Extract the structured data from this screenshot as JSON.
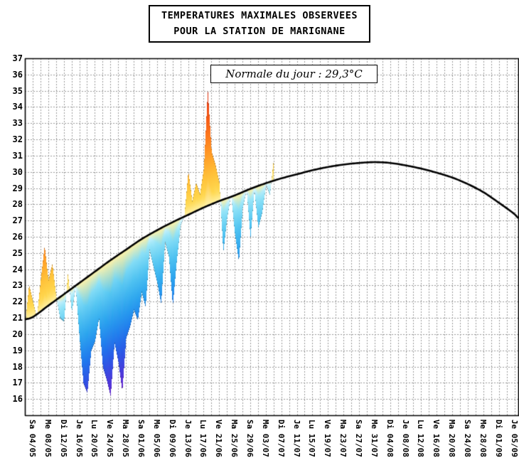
{
  "title": {
    "line1": "TEMPERATURES MAXIMALES OBSERVEES",
    "line2": "POUR LA STATION DE MARIGNANE"
  },
  "annotation": {
    "label": "Normale du jour : 29,3°C"
  },
  "chart_data": {
    "type": "area",
    "title": "TEMPERATURES MAXIMALES OBSERVEES POUR LA STATION DE MARIGNANE",
    "station": "MARIGNANE",
    "annotation": "Normale du jour : 29,3°C",
    "normale_du_jour_c": 29.3,
    "grid": {
      "horizontal_step_c": 1,
      "vertical_step_days": 2,
      "style": "dashed"
    },
    "y_axis": {
      "min": 15,
      "max": 37,
      "unit": "°C",
      "tick_labels": [
        "37",
        "36",
        "35",
        "34",
        "33",
        "32",
        "31",
        "30",
        "29",
        "28",
        "27",
        "26",
        "25",
        "24",
        "23",
        "22",
        "21",
        "20",
        "19",
        "18",
        "17",
        "16"
      ]
    },
    "x_axis": {
      "total_days": 127,
      "first_label_day_offset": 2,
      "label_step_days": 4,
      "minor_grid_step_days": 2,
      "labels": [
        "Sa 04/05",
        "Me 08/05",
        "Di 12/05",
        "Je 16/05",
        "Lu 20/05",
        "Ve 24/05",
        "Ma 28/05",
        "Sa 01/06",
        "Me 05/06",
        "Di 09/06",
        "Je 13/06",
        "Lu 17/06",
        "Ve 21/06",
        "Ma 25/06",
        "Sa 29/06",
        "Me 03/07",
        "Di 07/07",
        "Je 11/07",
        "Lu 15/07",
        "Ve 19/07",
        "Ma 23/07",
        "Sa 27/07",
        "Me 31/07",
        "Di 04/08",
        "Je 08/08",
        "Lu 12/08",
        "Ve 16/08",
        "Ma 20/08",
        "Sa 24/08",
        "Me 28/08",
        "Di 01/09",
        "Je 05/09"
      ]
    },
    "normal_curve": {
      "left_edge_value": 20.9,
      "values_at_labels": [
        21.05,
        21.75,
        22.45,
        23.15,
        23.85,
        24.55,
        25.2,
        25.85,
        26.4,
        26.9,
        27.35,
        27.8,
        28.2,
        28.55,
        28.95,
        29.3,
        29.6,
        29.85,
        30.1,
        30.3,
        30.45,
        30.55,
        30.6,
        30.55,
        30.4,
        30.2,
        29.95,
        29.65,
        29.25,
        28.75,
        28.1,
        27.4
      ],
      "right_edge_value": 27.15
    },
    "observed": {
      "start_day_offset": 0,
      "start_date": "02/05",
      "dates": [
        "02/05",
        "03/05",
        "04/05",
        "05/05",
        "06/05",
        "07/05",
        "08/05",
        "09/05",
        "10/05",
        "11/05",
        "12/05",
        "13/05",
        "14/05",
        "15/05",
        "16/05",
        "17/05",
        "18/05",
        "19/05",
        "20/05",
        "21/05",
        "22/05",
        "23/05",
        "24/05",
        "25/05",
        "26/05",
        "27/05",
        "28/05",
        "29/05",
        "30/05",
        "31/05",
        "01/06",
        "02/06",
        "03/06",
        "04/06",
        "05/06",
        "06/06",
        "07/06",
        "08/06",
        "09/06",
        "10/06",
        "11/06",
        "12/06",
        "13/06",
        "14/06",
        "15/06",
        "16/06",
        "17/06",
        "18/06",
        "19/06",
        "20/06",
        "21/06",
        "22/06",
        "23/06",
        "24/06",
        "25/06",
        "26/06",
        "27/06",
        "28/06",
        "29/06",
        "30/06",
        "01/07",
        "02/07",
        "03/07",
        "04/07",
        "05/07"
      ],
      "values": [
        20.6,
        23.0,
        22.0,
        21.0,
        23.3,
        25.4,
        23.3,
        24.3,
        22.3,
        21.0,
        20.8,
        23.7,
        21.4,
        22.9,
        19.8,
        17.0,
        16.4,
        19.0,
        19.6,
        21.0,
        18.0,
        17.2,
        16.2,
        19.5,
        18.3,
        16.5,
        19.8,
        20.5,
        21.5,
        20.9,
        22.6,
        21.7,
        25.2,
        24.2,
        23.2,
        21.9,
        25.7,
        24.8,
        21.8,
        24.5,
        26.7,
        27.3,
        30.0,
        28.2,
        29.3,
        28.6,
        30.2,
        35.0,
        31.2,
        30.4,
        29.3,
        25.1,
        27.2,
        28.6,
        26.2,
        24.5,
        27.8,
        28.9,
        26.0,
        28.9,
        26.6,
        27.5,
        29.2,
        28.6,
        30.8
      ]
    },
    "colors": {
      "background": "#ffffff",
      "grid": "#999999",
      "axis": "#000000",
      "normal_curve": "#000000",
      "observed_edge_darken": 0.72,
      "fill_scale_below": [
        [
          0,
          "#e2f7fd"
        ],
        [
          0.7,
          "#96e5f8"
        ],
        [
          2,
          "#55c7f2"
        ],
        [
          3.5,
          "#2aa4ee"
        ],
        [
          5,
          "#1e7aee"
        ],
        [
          6.5,
          "#2e4ce4"
        ],
        [
          8,
          "#5c2ad6"
        ],
        [
          9.5,
          "#8b1ec6"
        ]
      ],
      "fill_scale_above": [
        [
          0,
          "#fff2a8"
        ],
        [
          0.7,
          "#ffd84e"
        ],
        [
          2,
          "#ffbe36"
        ],
        [
          3,
          "#ffa028"
        ],
        [
          4.5,
          "#ff711a"
        ],
        [
          6,
          "#ef4a12"
        ],
        [
          7.5,
          "#d8200c"
        ]
      ]
    }
  }
}
